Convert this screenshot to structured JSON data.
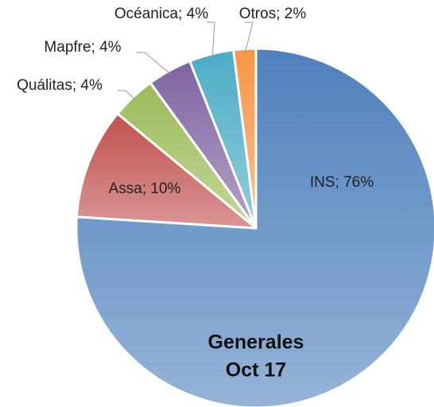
{
  "chart_data": {
    "type": "pie",
    "title": "Generales",
    "subtitle": "Oct 17",
    "categories": [
      "INS",
      "Assa",
      "Quálitas",
      "Mapfre",
      "Océanica",
      "Otros"
    ],
    "values": [
      76,
      10,
      4,
      4,
      4,
      2
    ],
    "value_labels": [
      "INS; 76%",
      "Assa; 10%",
      "Quálitas; 4%",
      "Mapfre; 4%",
      "Océanica; 4%",
      "Otros; 2%"
    ],
    "colors": [
      "#4f81bd",
      "#c0504d",
      "#9bbb59",
      "#8064a2",
      "#4bacc6",
      "#f79646"
    ]
  }
}
